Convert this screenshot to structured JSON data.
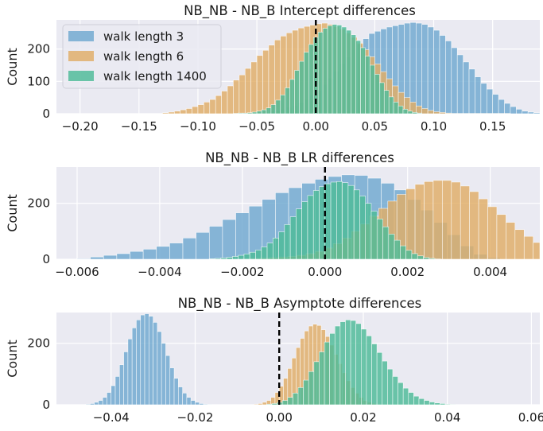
{
  "figure": {
    "background": "#ffffff",
    "axes_background": "#eaeaf2",
    "grid_color": "#ffffff",
    "zero_line_color": "#000000"
  },
  "chart_data": [
    {
      "type": "histogram",
      "title": "NB_NB - NB_B Intercept differences",
      "ylabel": "Count",
      "xlabel": "",
      "xlim": [
        -0.22,
        0.19
      ],
      "ylim": [
        0,
        290
      ],
      "xticks": [
        -0.2,
        -0.15,
        -0.1,
        -0.05,
        0.0,
        0.05,
        0.1,
        0.15
      ],
      "xtick_labels": [
        "−0.20",
        "−0.15",
        "−0.10",
        "−0.05",
        "0.00",
        "0.05",
        "0.10",
        "0.15"
      ],
      "yticks": [
        0,
        100,
        200
      ],
      "ytick_labels": [
        "0",
        "100",
        "200"
      ],
      "grid": true,
      "zero_line": {
        "x": 0,
        "style": "dashed"
      },
      "legend": {
        "placement": "top-left",
        "entries": [
          "walk length 3",
          "walk length 6",
          "walk length 1400"
        ]
      },
      "series": [
        {
          "name": "walk length 3",
          "color": "#6fa8d0",
          "bin_width": 0.005,
          "bin_start": -0.05,
          "counts": [
            3,
            5,
            8,
            10,
            14,
            20,
            26,
            34,
            44,
            58,
            72,
            90,
            110,
            132,
            155,
            175,
            198,
            215,
            232,
            248,
            255,
            262,
            268,
            272,
            276,
            280,
            282,
            280,
            276,
            268,
            258,
            242,
            225,
            204,
            182,
            160,
            138,
            114,
            94,
            76,
            60,
            44,
            32,
            22,
            14,
            8,
            5,
            3
          ]
        },
        {
          "name": "walk length 6",
          "color": "#e0ad66",
          "bin_width": 0.005,
          "bin_start": -0.13,
          "counts": [
            3,
            5,
            8,
            12,
            16,
            22,
            28,
            36,
            44,
            56,
            70,
            86,
            104,
            120,
            140,
            160,
            180,
            196,
            212,
            228,
            240,
            250,
            258,
            265,
            270,
            274,
            278,
            280,
            276,
            270,
            262,
            250,
            236,
            218,
            198,
            176,
            154,
            130,
            108,
            86,
            66,
            50,
            36,
            24,
            16,
            10,
            6,
            4,
            2,
            1,
            1,
            1,
            1,
            1,
            1,
            1,
            1,
            1,
            1
          ]
        },
        {
          "name": "walk length 1400",
          "color": "#4dbb97",
          "bin_width": 0.004,
          "bin_start": -0.07,
          "counts": [
            1,
            2,
            2,
            3,
            5,
            8,
            12,
            18,
            28,
            42,
            58,
            80,
            106,
            134,
            162,
            190,
            214,
            236,
            252,
            264,
            272,
            276,
            274,
            268,
            258,
            244,
            226,
            204,
            178,
            150,
            122,
            96,
            72,
            52,
            36,
            24,
            14,
            8,
            4,
            2
          ]
        }
      ]
    },
    {
      "type": "histogram",
      "title": "NB_NB - NB_B LR differences",
      "ylabel": "Count",
      "xlabel": "",
      "xlim": [
        -0.0065,
        0.0052
      ],
      "ylim": [
        0,
        330
      ],
      "xticks": [
        -0.006,
        -0.004,
        -0.002,
        0.0,
        0.002,
        0.004
      ],
      "xtick_labels": [
        "−0.006",
        "−0.004",
        "−0.002",
        "0.000",
        "0.002",
        "0.004"
      ],
      "yticks": [
        0,
        200
      ],
      "ytick_labels": [
        "0",
        "200"
      ],
      "grid": true,
      "zero_line": {
        "x": 0,
        "style": "dashed"
      },
      "series": [
        {
          "name": "walk length 3",
          "color": "#6fa8d0",
          "bin_width": 0.00032,
          "bin_start": -0.006,
          "counts": [
            2,
            8,
            14,
            20,
            28,
            36,
            46,
            58,
            76,
            96,
            118,
            142,
            166,
            190,
            214,
            238,
            256,
            272,
            286,
            296,
            302,
            300,
            290,
            272,
            248,
            214,
            176,
            132,
            88,
            48,
            18,
            6
          ]
        },
        {
          "name": "walk length 6",
          "color": "#e0ad66",
          "bin_width": 0.00022,
          "bin_start": -0.002,
          "counts": [
            2,
            3,
            4,
            6,
            8,
            10,
            14,
            20,
            28,
            40,
            56,
            76,
            100,
            126,
            154,
            182,
            208,
            232,
            252,
            268,
            278,
            282,
            282,
            276,
            262,
            242,
            216,
            188,
            160,
            132,
            106,
            82,
            60,
            42,
            28,
            18,
            12,
            8,
            6,
            4,
            3,
            2
          ]
        },
        {
          "name": "walk length 1400",
          "color": "#4dbb97",
          "bin_width": 0.00014,
          "bin_start": -0.0028,
          "counts": [
            2,
            3,
            5,
            7,
            10,
            14,
            19,
            25,
            33,
            44,
            58,
            76,
            98,
            124,
            152,
            180,
            206,
            228,
            246,
            260,
            270,
            276,
            278,
            274,
            264,
            248,
            226,
            200,
            172,
            144,
            116,
            90,
            68,
            48,
            32,
            20,
            12,
            6,
            3,
            1
          ]
        }
      ]
    },
    {
      "type": "histogram",
      "title": "NB_NB - NB_B Asymptote differences",
      "ylabel": "Count",
      "xlabel": "",
      "xlim": [
        -0.053,
        0.062
      ],
      "ylim": [
        0,
        300
      ],
      "xticks": [
        -0.04,
        -0.02,
        0.0,
        0.02,
        0.04,
        0.06
      ],
      "xtick_labels": [
        "−0.04",
        "−0.02",
        "0.00",
        "0.02",
        "0.04",
        "0.06"
      ],
      "yticks": [
        0,
        200
      ],
      "ytick_labels": [
        "0",
        "200"
      ],
      "grid": true,
      "zero_line": {
        "x": 0,
        "style": "dashed"
      },
      "series": [
        {
          "name": "walk length 3",
          "color": "#6fa8d0",
          "bin_width": 0.001,
          "bin_start": -0.046,
          "counts": [
            2,
            4,
            8,
            14,
            24,
            40,
            62,
            92,
            130,
            172,
            214,
            250,
            276,
            292,
            296,
            288,
            268,
            238,
            200,
            160,
            120,
            86,
            58,
            38,
            24,
            14,
            8,
            4,
            2,
            1
          ]
        },
        {
          "name": "walk length 6",
          "color": "#e0ad66",
          "bin_width": 0.001,
          "bin_start": -0.006,
          "counts": [
            2,
            4,
            8,
            14,
            24,
            40,
            60,
            86,
            118,
            152,
            186,
            216,
            240,
            256,
            262,
            258,
            244,
            222,
            194,
            164,
            134,
            104,
            78,
            56,
            38,
            24,
            14,
            8,
            4,
            2
          ]
        },
        {
          "name": "walk length 1400",
          "color": "#4dbb97",
          "bin_width": 0.00125,
          "bin_start": -0.003,
          "counts": [
            2,
            4,
            8,
            14,
            24,
            38,
            56,
            80,
            108,
            140,
            172,
            204,
            232,
            256,
            270,
            276,
            274,
            264,
            246,
            224,
            198,
            170,
            142,
            116,
            92,
            72,
            54,
            40,
            28,
            20,
            14,
            9,
            6,
            4,
            2,
            1
          ]
        }
      ]
    }
  ]
}
